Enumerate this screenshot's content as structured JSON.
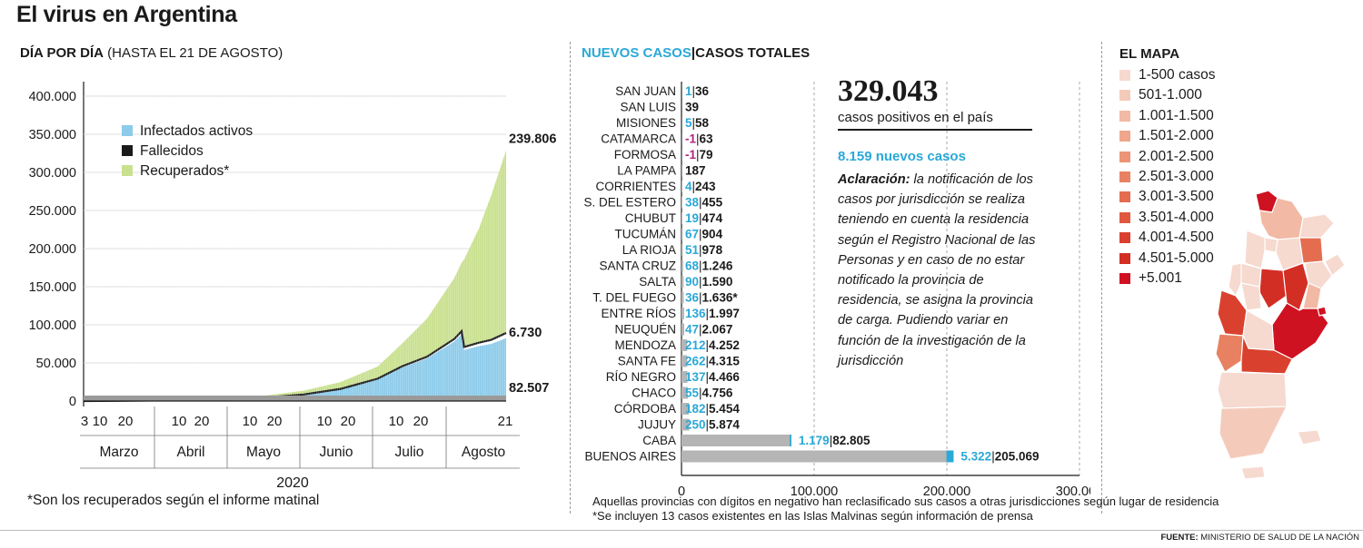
{
  "title": "El virus en Argentina",
  "left": {
    "subtitle_bold": "DÍA POR DÍA",
    "subtitle_rest": "(HASTA EL 21 DE AGOSTO)",
    "year": "2020",
    "footnote": "*Son los recuperados según el informe matinal",
    "end_labels": {
      "total": "239.806",
      "deaths": "6.730",
      "active": "82.507"
    }
  },
  "middle": {
    "header_new": "NUEVOS CASOS",
    "header_sep": "|",
    "header_total": "CASOS TOTALES",
    "total_cases": "329.043",
    "total_cases_label": "casos positivos en el país",
    "new_cases_line": "8.159 nuevos casos",
    "note_bold": "Aclaración:",
    "note_text": " la notificación de los casos por jurisdicción se realiza teniendo en cuenta la residencia según el Registro Nacional de las Personas y en caso de no estar notificado la provincia de residencia, se asigna la provincia de carga. Pudiendo variar en función de la investigación de la jurisdicción",
    "foot_a": "Aquellas provincias con dígitos en negativo han reclasificado sus casos a otras jurisdicciones según lugar de residencia",
    "foot_b": "*Se incluyen 13 casos existentes en las Islas Malvinas según información de prensa"
  },
  "map": {
    "title": "EL MAPA",
    "legend": [
      {
        "label": "1-500 casos",
        "color": "#f6d9cf"
      },
      {
        "label": "501-1.000",
        "color": "#f4cbbb"
      },
      {
        "label": "1.001-1.500",
        "color": "#f2b9a4"
      },
      {
        "label": "1.501-2.000",
        "color": "#efa68c"
      },
      {
        "label": "2.001-2.500",
        "color": "#ec9476"
      },
      {
        "label": "2.501-3.000",
        "color": "#e88162"
      },
      {
        "label": "3.001-3.500",
        "color": "#e46d50"
      },
      {
        "label": "3.501-4.000",
        "color": "#df583f"
      },
      {
        "label": "4.001-4.500",
        "color": "#d9412e"
      },
      {
        "label": "4.501-5.000",
        "color": "#d32e24"
      },
      {
        "label": "+5.001",
        "color": "#cf1221"
      }
    ]
  },
  "source_bold": "FUENTE:",
  "source_rest": " MINISTERIO DE SALUD DE LA NACIÓN",
  "chart_data": [
    {
      "type": "area",
      "title": "DÍA POR DÍA (HASTA EL 21 DE AGOSTO)",
      "ylim": [
        0,
        400000
      ],
      "yticks": [
        "0",
        "50.000",
        "100.000",
        "150.000",
        "200.000",
        "250.000",
        "300.000",
        "350.000",
        "400.000"
      ],
      "ytick_values": [
        0,
        50000,
        100000,
        150000,
        200000,
        250000,
        300000,
        350000,
        400000
      ],
      "months": [
        "Marzo",
        "Abril",
        "Mayo",
        "Junio",
        "Julio",
        "Agosto"
      ],
      "xtick_groups": [
        [
          "3",
          "10",
          "20"
        ],
        [
          "10",
          "20"
        ],
        [
          "10",
          "20"
        ],
        [
          "10",
          "20"
        ],
        [
          "10",
          "20"
        ],
        [
          "21"
        ]
      ],
      "legend": [
        "Infectados activos",
        "Fallecidos",
        "Recuperados*"
      ],
      "colors": {
        "active": "#8ccbea",
        "deaths": "#1a1a1a",
        "recovered": "#c9e08f"
      },
      "x": [
        "2020-03-03",
        "2020-03-31",
        "2020-04-15",
        "2020-04-30",
        "2020-05-15",
        "2020-05-31",
        "2020-06-15",
        "2020-06-30",
        "2020-07-10",
        "2020-07-20",
        "2020-07-31",
        "2020-08-03",
        "2020-08-04",
        "2020-08-10",
        "2020-08-15",
        "2020-08-21"
      ],
      "series": [
        {
          "name": "Infectados activos",
          "values": [
            0,
            700,
            1300,
            2200,
            4000,
            8000,
            15000,
            28000,
            44000,
            56000,
            78000,
            88000,
            67000,
            72000,
            75000,
            82507
          ]
        },
        {
          "name": "Fallecidos",
          "values": [
            0,
            20,
            150,
            250,
            350,
            530,
            900,
            1300,
            1700,
            2200,
            3300,
            3700,
            3900,
            4500,
            5300,
            6730
          ]
        },
        {
          "name": "Recuperados*",
          "values": [
            0,
            200,
            700,
            1600,
            2700,
            5000,
            9000,
            16000,
            30000,
            50000,
            80000,
            90000,
            115000,
            150000,
            190000,
            239806
          ]
        }
      ]
    },
    {
      "type": "bar",
      "title": "NUEVOS CASOS | CASOS TOTALES",
      "xlim": [
        0,
        300000
      ],
      "xticks": [
        "0",
        "100.000",
        "200.000",
        "300.000"
      ],
      "xtick_values": [
        0,
        100000,
        200000,
        300000
      ],
      "categories": [
        "SAN JUAN",
        "SAN LUIS",
        "MISIONES",
        "CATAMARCA",
        "FORMOSA",
        "LA PAMPA",
        "CORRIENTES",
        "S. DEL ESTERO",
        "CHUBUT",
        "TUCUMÁN",
        "LA RIOJA",
        "SANTA CRUZ",
        "SALTA",
        "T. DEL FUEGO",
        "ENTRE RÍOS",
        "NEUQUÉN",
        "MENDOZA",
        "SANTA FE",
        "RÍO NEGRO",
        "CHACO",
        "CÓRDOBA",
        "JUJUY",
        "CABA",
        "BUENOS AIRES"
      ],
      "new_cases": [
        "1",
        "",
        "5",
        "-1",
        "-1",
        "",
        "4",
        "38",
        "19",
        "67",
        "51",
        "68",
        "90",
        "36",
        "136",
        "47",
        "212",
        "262",
        "137",
        "55",
        "182",
        "250",
        "1.179",
        "5.322"
      ],
      "total_cases": [
        "36",
        "39",
        "58",
        "63",
        "79",
        "187",
        "243",
        "455",
        "474",
        "904",
        "978",
        "1.246",
        "1.590",
        "1.636*",
        "1.997",
        "2.067",
        "4.252",
        "4.315",
        "4.466",
        "4.756",
        "5.454",
        "5.874",
        "82.805",
        "205.069"
      ],
      "new_values": [
        1,
        0,
        5,
        -1,
        -1,
        0,
        4,
        38,
        19,
        67,
        51,
        68,
        90,
        36,
        136,
        47,
        212,
        262,
        137,
        55,
        182,
        250,
        1179,
        5322
      ],
      "total_values": [
        36,
        39,
        58,
        63,
        79,
        187,
        243,
        455,
        474,
        904,
        978,
        1246,
        1590,
        1636,
        1997,
        2067,
        4252,
        4315,
        4466,
        4756,
        5454,
        5874,
        82805,
        205069
      ],
      "colors": {
        "total_bar": "#b5b5b5",
        "new": "#2aa8d8",
        "negative": "#b0247a"
      }
    }
  ]
}
